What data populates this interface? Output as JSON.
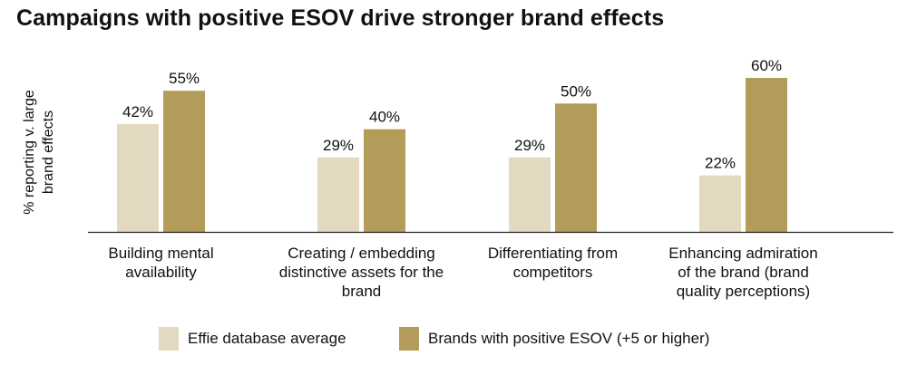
{
  "title": "Campaigns with positive ESOV drive stronger brand effects",
  "colors": {
    "series1": "#e3d9c0",
    "series2": "#b39c5a",
    "axis": "#222222",
    "text": "#111111"
  },
  "chart_data": {
    "type": "bar",
    "title": "Campaigns with positive ESOV drive stronger brand effects",
    "ylabel": "% reporting v. large\nbrand effects",
    "xlabel": "",
    "ylim": [
      0,
      60
    ],
    "grid": false,
    "legend_position": "bottom",
    "categories": [
      [
        "Building mental",
        "availability"
      ],
      [
        "Creating / embedding",
        "distinctive assets for the",
        "brand"
      ],
      [
        "Differentiating from",
        "competitors"
      ],
      [
        "Enhancing admiration",
        "of the brand (brand",
        "quality perceptions)"
      ]
    ],
    "series": [
      {
        "name": "Effie database average",
        "values": [
          42,
          29,
          29,
          22
        ],
        "labels": [
          "42%",
          "29%",
          "29%",
          "22%"
        ]
      },
      {
        "name": "Brands with positive ESOV (+5 or higher)",
        "values": [
          55,
          40,
          50,
          60
        ],
        "labels": [
          "55%",
          "40%",
          "50%",
          "60%"
        ]
      }
    ]
  }
}
